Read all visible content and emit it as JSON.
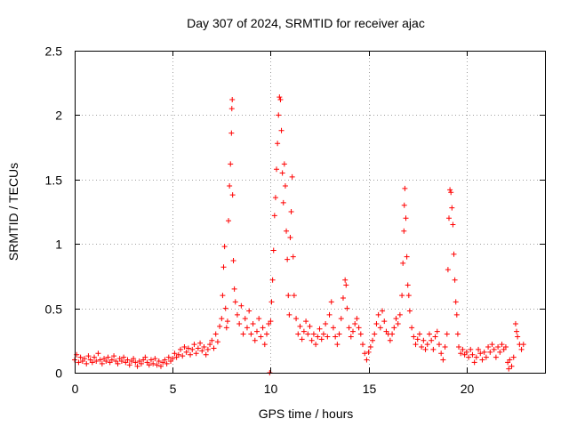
{
  "chart_data": {
    "type": "scatter",
    "title": "Day 307 of 2024, SRMTID for receiver ajac",
    "xlabel": "GPS time / hours",
    "ylabel": "SRMTID / TECUs",
    "xlim": [
      0,
      24
    ],
    "ylim": [
      0,
      2.5
    ],
    "xticks": [
      0,
      5,
      10,
      15,
      20
    ],
    "yticks": [
      0,
      0.5,
      1,
      1.5,
      2,
      2.5
    ],
    "xtick_labels": [
      "0",
      "5",
      "10",
      "15",
      "20"
    ],
    "ytick_labels": [
      "0",
      "0.5",
      "1",
      "1.5",
      "2",
      "2.5"
    ],
    "grid": true,
    "marker": "+",
    "color": "#ff0000",
    "series": [
      {
        "name": "SRMTID",
        "points": [
          [
            0.0,
            0.1
          ],
          [
            0.1,
            0.14
          ],
          [
            0.2,
            0.08
          ],
          [
            0.3,
            0.12
          ],
          [
            0.4,
            0.09
          ],
          [
            0.5,
            0.11
          ],
          [
            0.6,
            0.07
          ],
          [
            0.7,
            0.13
          ],
          [
            0.8,
            0.1
          ],
          [
            0.9,
            0.08
          ],
          [
            1.0,
            0.12
          ],
          [
            1.1,
            0.09
          ],
          [
            1.2,
            0.15
          ],
          [
            1.3,
            0.1
          ],
          [
            1.4,
            0.07
          ],
          [
            1.5,
            0.11
          ],
          [
            1.6,
            0.09
          ],
          [
            1.7,
            0.12
          ],
          [
            1.8,
            0.08
          ],
          [
            1.9,
            0.1
          ],
          [
            2.0,
            0.13
          ],
          [
            2.1,
            0.09
          ],
          [
            2.2,
            0.07
          ],
          [
            2.3,
            0.11
          ],
          [
            2.4,
            0.09
          ],
          [
            2.5,
            0.12
          ],
          [
            2.6,
            0.08
          ],
          [
            2.7,
            0.1
          ],
          [
            2.8,
            0.06
          ],
          [
            2.9,
            0.09
          ],
          [
            3.0,
            0.11
          ],
          [
            3.1,
            0.08
          ],
          [
            3.2,
            0.05
          ],
          [
            3.3,
            0.09
          ],
          [
            3.4,
            0.07
          ],
          [
            3.5,
            0.1
          ],
          [
            3.6,
            0.12
          ],
          [
            3.7,
            0.08
          ],
          [
            3.8,
            0.06
          ],
          [
            3.9,
            0.1
          ],
          [
            4.0,
            0.07
          ],
          [
            4.1,
            0.11
          ],
          [
            4.2,
            0.06
          ],
          [
            4.3,
            0.09
          ],
          [
            4.4,
            0.05
          ],
          [
            4.5,
            0.08
          ],
          [
            4.6,
            0.1
          ],
          [
            4.7,
            0.07
          ],
          [
            4.8,
            0.12
          ],
          [
            4.9,
            0.09
          ],
          [
            5.0,
            0.11
          ],
          [
            5.1,
            0.15
          ],
          [
            5.2,
            0.12
          ],
          [
            5.3,
            0.14
          ],
          [
            5.4,
            0.18
          ],
          [
            5.5,
            0.13
          ],
          [
            5.6,
            0.2
          ],
          [
            5.7,
            0.16
          ],
          [
            5.8,
            0.19
          ],
          [
            5.9,
            0.14
          ],
          [
            6.0,
            0.18
          ],
          [
            6.1,
            0.22
          ],
          [
            6.2,
            0.15
          ],
          [
            6.3,
            0.19
          ],
          [
            6.4,
            0.23
          ],
          [
            6.5,
            0.17
          ],
          [
            6.6,
            0.2
          ],
          [
            6.7,
            0.14
          ],
          [
            6.8,
            0.18
          ],
          [
            6.9,
            0.22
          ],
          [
            7.0,
            0.25
          ],
          [
            7.1,
            0.19
          ],
          [
            7.2,
            0.3
          ],
          [
            7.3,
            0.24
          ],
          [
            7.4,
            0.36
          ],
          [
            7.5,
            0.42
          ],
          [
            7.55,
            0.6
          ],
          [
            7.6,
            0.82
          ],
          [
            7.65,
            0.98
          ],
          [
            7.7,
            0.5
          ],
          [
            7.75,
            0.35
          ],
          [
            7.8,
            0.4
          ],
          [
            7.85,
            1.18
          ],
          [
            7.9,
            1.45
          ],
          [
            7.95,
            1.62
          ],
          [
            8.0,
            1.86
          ],
          [
            8.02,
            2.05
          ],
          [
            8.04,
            2.12
          ],
          [
            8.06,
            1.38
          ],
          [
            8.1,
            0.87
          ],
          [
            8.15,
            0.65
          ],
          [
            8.2,
            0.55
          ],
          [
            8.3,
            0.45
          ],
          [
            8.4,
            0.38
          ],
          [
            8.5,
            0.52
          ],
          [
            8.6,
            0.3
          ],
          [
            8.7,
            0.42
          ],
          [
            8.8,
            0.35
          ],
          [
            8.9,
            0.48
          ],
          [
            9.0,
            0.3
          ],
          [
            9.1,
            0.38
          ],
          [
            9.2,
            0.25
          ],
          [
            9.3,
            0.32
          ],
          [
            9.4,
            0.42
          ],
          [
            9.5,
            0.28
          ],
          [
            9.6,
            0.35
          ],
          [
            9.7,
            0.22
          ],
          [
            9.8,
            0.3
          ],
          [
            9.9,
            0.38
          ],
          [
            9.95,
            0.0
          ],
          [
            10.0,
            0.4
          ],
          [
            10.05,
            0.55
          ],
          [
            10.1,
            0.72
          ],
          [
            10.15,
            0.95
          ],
          [
            10.2,
            1.22
          ],
          [
            10.25,
            1.36
          ],
          [
            10.3,
            1.58
          ],
          [
            10.35,
            1.78
          ],
          [
            10.4,
            2.0
          ],
          [
            10.45,
            2.14
          ],
          [
            10.5,
            2.12
          ],
          [
            10.55,
            1.88
          ],
          [
            10.6,
            1.55
          ],
          [
            10.65,
            1.32
          ],
          [
            10.7,
            1.62
          ],
          [
            10.75,
            1.45
          ],
          [
            10.8,
            1.1
          ],
          [
            10.85,
            0.88
          ],
          [
            10.9,
            0.6
          ],
          [
            10.95,
            0.45
          ],
          [
            11.0,
            1.05
          ],
          [
            11.05,
            1.25
          ],
          [
            11.1,
            1.52
          ],
          [
            11.15,
            0.9
          ],
          [
            11.2,
            0.6
          ],
          [
            11.3,
            0.42
          ],
          [
            11.4,
            0.3
          ],
          [
            11.5,
            0.36
          ],
          [
            11.6,
            0.26
          ],
          [
            11.7,
            0.32
          ],
          [
            11.8,
            0.4
          ],
          [
            11.9,
            0.3
          ],
          [
            12.0,
            0.36
          ],
          [
            12.1,
            0.25
          ],
          [
            12.2,
            0.3
          ],
          [
            12.3,
            0.22
          ],
          [
            12.4,
            0.28
          ],
          [
            12.5,
            0.34
          ],
          [
            12.6,
            0.26
          ],
          [
            12.7,
            0.3
          ],
          [
            12.8,
            0.38
          ],
          [
            12.9,
            0.28
          ],
          [
            13.0,
            0.45
          ],
          [
            13.1,
            0.55
          ],
          [
            13.2,
            0.35
          ],
          [
            13.3,
            0.28
          ],
          [
            13.4,
            0.22
          ],
          [
            13.5,
            0.3
          ],
          [
            13.6,
            0.42
          ],
          [
            13.7,
            0.58
          ],
          [
            13.8,
            0.72
          ],
          [
            13.85,
            0.68
          ],
          [
            13.9,
            0.5
          ],
          [
            14.0,
            0.35
          ],
          [
            14.1,
            0.28
          ],
          [
            14.2,
            0.32
          ],
          [
            14.3,
            0.38
          ],
          [
            14.4,
            0.42
          ],
          [
            14.5,
            0.35
          ],
          [
            14.6,
            0.3
          ],
          [
            14.7,
            0.22
          ],
          [
            14.8,
            0.15
          ],
          [
            14.9,
            0.1
          ],
          [
            15.0,
            0.16
          ],
          [
            15.1,
            0.2
          ],
          [
            15.2,
            0.25
          ],
          [
            15.3,
            0.3
          ],
          [
            15.4,
            0.38
          ],
          [
            15.5,
            0.45
          ],
          [
            15.6,
            0.35
          ],
          [
            15.7,
            0.48
          ],
          [
            15.8,
            0.4
          ],
          [
            15.9,
            0.32
          ],
          [
            16.0,
            0.3
          ],
          [
            16.1,
            0.25
          ],
          [
            16.2,
            0.3
          ],
          [
            16.3,
            0.35
          ],
          [
            16.4,
            0.42
          ],
          [
            16.5,
            0.38
          ],
          [
            16.6,
            0.45
          ],
          [
            16.7,
            0.6
          ],
          [
            16.75,
            0.85
          ],
          [
            16.8,
            1.1
          ],
          [
            16.82,
            1.3
          ],
          [
            16.85,
            1.43
          ],
          [
            16.9,
            1.2
          ],
          [
            16.95,
            0.9
          ],
          [
            17.0,
            0.68
          ],
          [
            17.05,
            0.6
          ],
          [
            17.1,
            0.48
          ],
          [
            17.2,
            0.35
          ],
          [
            17.3,
            0.28
          ],
          [
            17.4,
            0.22
          ],
          [
            17.5,
            0.26
          ],
          [
            17.6,
            0.3
          ],
          [
            17.7,
            0.2
          ],
          [
            17.8,
            0.25
          ],
          [
            17.9,
            0.18
          ],
          [
            18.0,
            0.22
          ],
          [
            18.1,
            0.3
          ],
          [
            18.2,
            0.25
          ],
          [
            18.3,
            0.18
          ],
          [
            18.4,
            0.28
          ],
          [
            18.5,
            0.32
          ],
          [
            18.6,
            0.22
          ],
          [
            18.7,
            0.15
          ],
          [
            18.8,
            0.1
          ],
          [
            18.9,
            0.2
          ],
          [
            19.0,
            0.3
          ],
          [
            19.05,
            0.8
          ],
          [
            19.1,
            1.2
          ],
          [
            19.15,
            1.42
          ],
          [
            19.2,
            1.4
          ],
          [
            19.25,
            1.28
          ],
          [
            19.3,
            1.15
          ],
          [
            19.35,
            0.92
          ],
          [
            19.4,
            0.72
          ],
          [
            19.45,
            0.55
          ],
          [
            19.5,
            0.45
          ],
          [
            19.55,
            0.3
          ],
          [
            19.6,
            0.2
          ],
          [
            19.7,
            0.15
          ],
          [
            19.8,
            0.18
          ],
          [
            19.9,
            0.14
          ],
          [
            20.0,
            0.16
          ],
          [
            20.1,
            0.12
          ],
          [
            20.2,
            0.18
          ],
          [
            20.3,
            0.14
          ],
          [
            20.4,
            0.08
          ],
          [
            20.5,
            0.12
          ],
          [
            20.6,
            0.18
          ],
          [
            20.7,
            0.15
          ],
          [
            20.8,
            0.1
          ],
          [
            20.9,
            0.16
          ],
          [
            21.0,
            0.12
          ],
          [
            21.1,
            0.2
          ],
          [
            21.2,
            0.16
          ],
          [
            21.3,
            0.22
          ],
          [
            21.4,
            0.18
          ],
          [
            21.5,
            0.12
          ],
          [
            21.6,
            0.2
          ],
          [
            21.7,
            0.16
          ],
          [
            21.8,
            0.22
          ],
          [
            21.9,
            0.18
          ],
          [
            22.0,
            0.2
          ],
          [
            22.1,
            0.08
          ],
          [
            22.15,
            0.03
          ],
          [
            22.2,
            0.1
          ],
          [
            22.3,
            0.05
          ],
          [
            22.4,
            0.12
          ],
          [
            22.5,
            0.38
          ],
          [
            22.55,
            0.32
          ],
          [
            22.6,
            0.28
          ],
          [
            22.7,
            0.22
          ],
          [
            22.8,
            0.18
          ],
          [
            22.9,
            0.22
          ]
        ]
      }
    ]
  }
}
